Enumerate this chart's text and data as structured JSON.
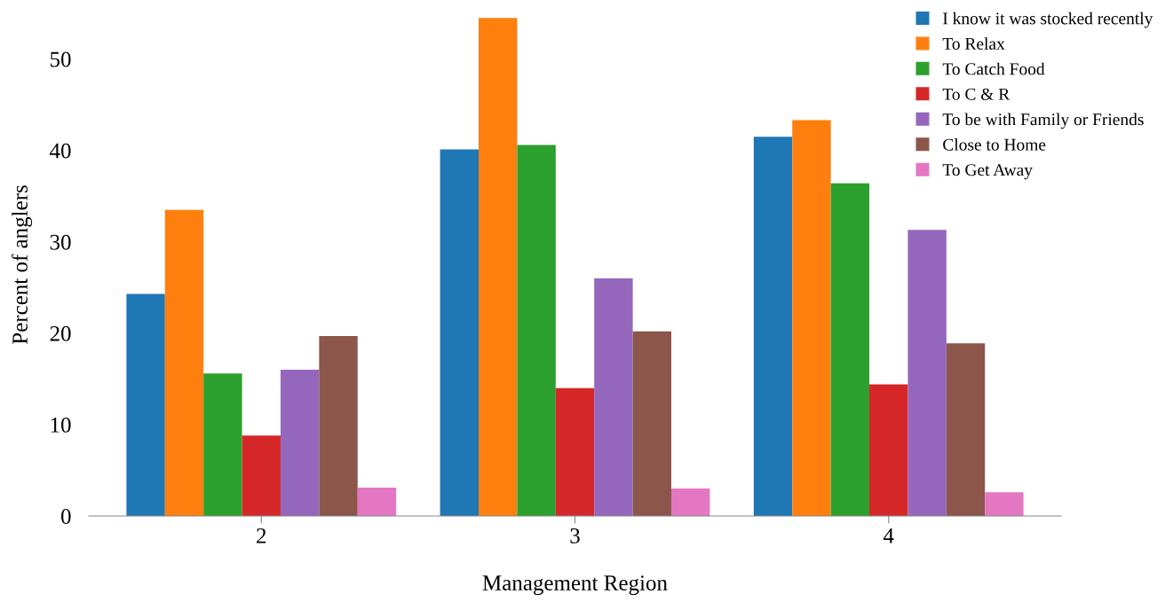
{
  "chart_data": {
    "type": "bar",
    "xlabel": "Management Region",
    "ylabel": "Percent of anglers",
    "categories": [
      "2",
      "3",
      "4"
    ],
    "series": [
      {
        "name": "I know it was stocked recently",
        "color": "#1f77b4",
        "values": [
          24.3,
          40.1,
          41.5
        ]
      },
      {
        "name": "To Relax",
        "color": "#ff7f0e",
        "values": [
          33.5,
          54.5,
          43.3
        ]
      },
      {
        "name": "To Catch Food",
        "color": "#2ca02c",
        "values": [
          15.6,
          40.6,
          36.4
        ]
      },
      {
        "name": "To C & R",
        "color": "#d62728",
        "values": [
          8.8,
          14.0,
          14.4
        ]
      },
      {
        "name": "To be with Family or Friends",
        "color": "#9467bd",
        "values": [
          16.0,
          26.0,
          31.3
        ]
      },
      {
        "name": "Close to Home",
        "color": "#8c564b",
        "values": [
          19.7,
          20.2,
          18.9
        ]
      },
      {
        "name": "To Get Away",
        "color": "#e377c2",
        "values": [
          3.1,
          3.0,
          2.6
        ]
      }
    ],
    "ylim": [
      0,
      55
    ],
    "yticks": [
      0,
      10,
      20,
      30,
      40,
      50
    ],
    "grid": false,
    "legend": "top right"
  }
}
